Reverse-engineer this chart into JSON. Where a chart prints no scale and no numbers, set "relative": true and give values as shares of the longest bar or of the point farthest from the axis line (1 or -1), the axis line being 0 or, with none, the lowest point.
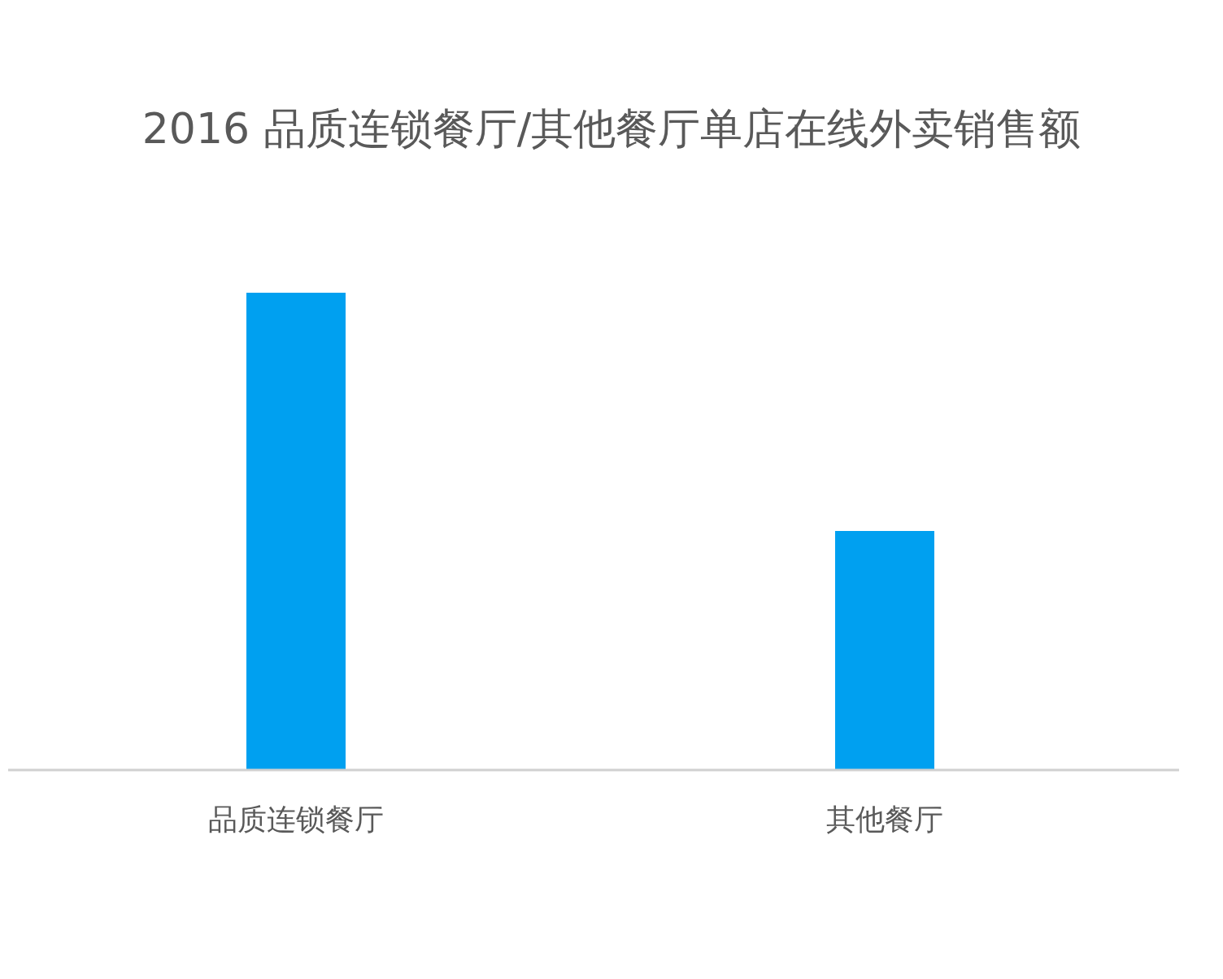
{
  "chart_data": {
    "type": "bar",
    "title": "2016 品质连锁餐厅/其他餐厅单店在线外卖销售额",
    "categories": [
      "品质连锁餐厅",
      "其他餐厅"
    ],
    "values": [
      1,
      0.5
    ],
    "color": "#00a0f0",
    "relative": true
  }
}
